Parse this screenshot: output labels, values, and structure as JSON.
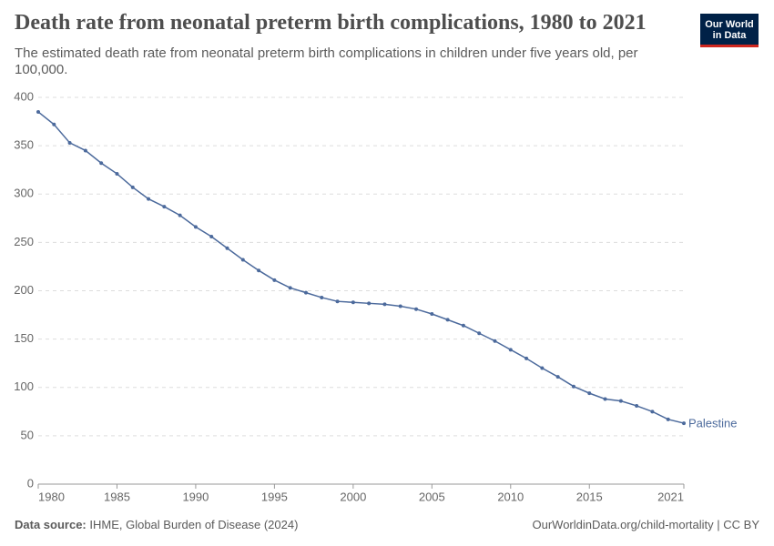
{
  "chart_data": {
    "type": "line",
    "title": "Death rate from neonatal preterm birth complications, 1980 to 2021",
    "subtitle": "The estimated death rate from neonatal preterm birth complications in children under five years old, per 100,000.",
    "x": [
      1980,
      1981,
      1982,
      1983,
      1984,
      1985,
      1986,
      1987,
      1988,
      1989,
      1990,
      1991,
      1992,
      1993,
      1994,
      1995,
      1996,
      1997,
      1998,
      1999,
      2000,
      2001,
      2002,
      2003,
      2004,
      2005,
      2006,
      2007,
      2008,
      2009,
      2010,
      2011,
      2012,
      2013,
      2014,
      2015,
      2016,
      2017,
      2018,
      2019,
      2020,
      2021
    ],
    "series": [
      {
        "name": "Palestine",
        "color": "#4c6a9c",
        "values": [
          385,
          372,
          353,
          345,
          332,
          321,
          307,
          295,
          287,
          278,
          266,
          256,
          244,
          232,
          221,
          211,
          203,
          198,
          193,
          189,
          188,
          187,
          186,
          184,
          181,
          176,
          170,
          164,
          156,
          148,
          139,
          130,
          120,
          111,
          101,
          94,
          88,
          86,
          81,
          75,
          67,
          63
        ]
      }
    ],
    "xlim": [
      1980,
      2021
    ],
    "xticks": [
      1980,
      1985,
      1990,
      1995,
      2000,
      2005,
      2010,
      2015,
      2021
    ],
    "ylim": [
      0,
      400
    ],
    "yticks": [
      0,
      50,
      100,
      150,
      200,
      250,
      300,
      350,
      400
    ],
    "grid": true,
    "logo": "Our World in Data",
    "source_label": "Data source:",
    "source": "IHME, Global Burden of Disease (2024)",
    "credit": "OurWorldinData.org/child-mortality | CC BY"
  }
}
